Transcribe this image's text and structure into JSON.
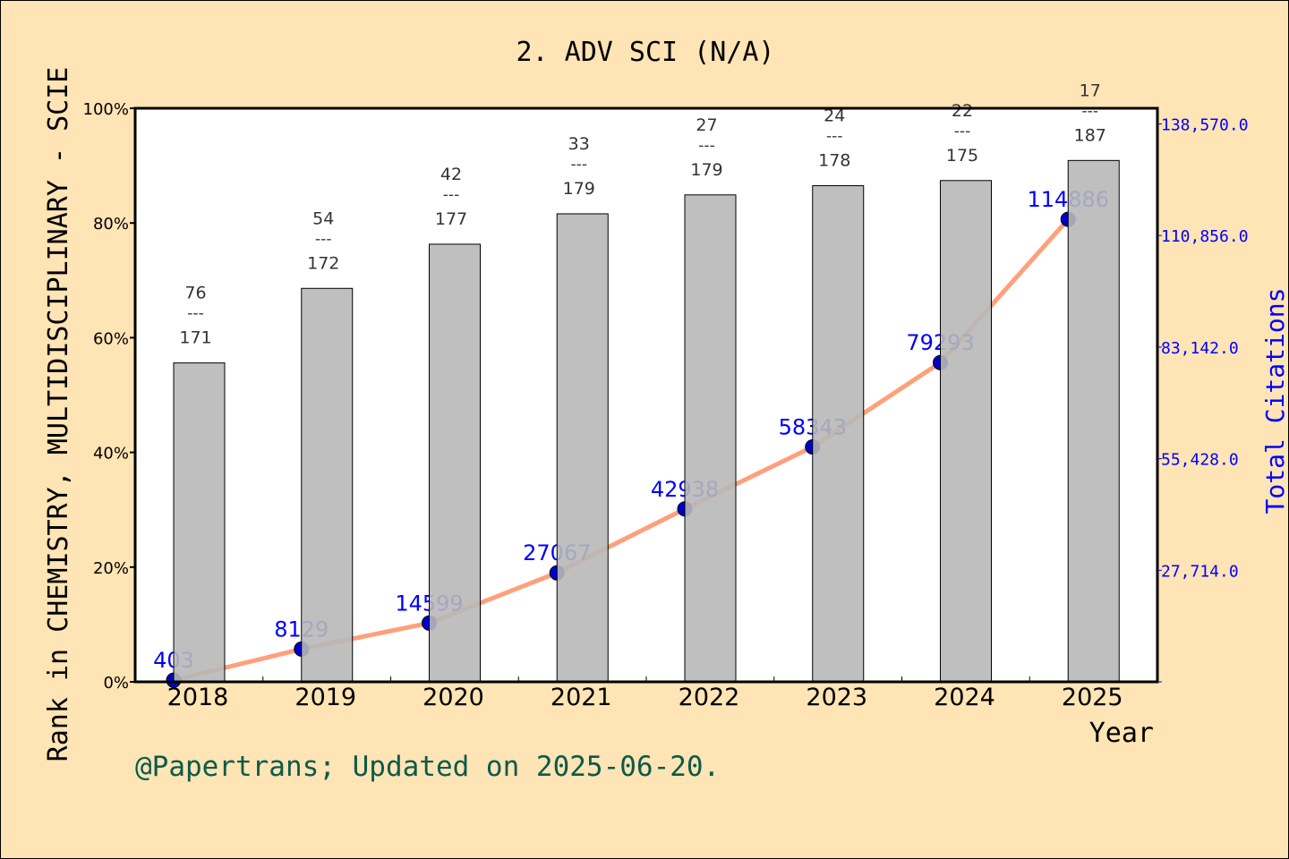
{
  "chart_data": {
    "type": "bar",
    "title": "2. ADV SCI (N/A)",
    "xlabel": "Year",
    "ylabel": "Rank in CHEMISTRY, MULTIDISCIPLINARY - SCIE",
    "y2label": "Total Citations",
    "categories": [
      "2018",
      "2019",
      "2020",
      "2021",
      "2022",
      "2023",
      "2024",
      "2025"
    ],
    "ranks": [
      76,
      54,
      42,
      33,
      27,
      24,
      22,
      17
    ],
    "totals": [
      171,
      172,
      177,
      179,
      179,
      178,
      175,
      187
    ],
    "rank_separator": "---",
    "bar_percent": [
      55.6,
      68.6,
      76.3,
      81.6,
      84.9,
      86.5,
      87.4,
      90.9
    ],
    "ylim": [
      0,
      100
    ],
    "yticks": [
      "0%",
      "20%",
      "40%",
      "60%",
      "80%",
      "100%"
    ],
    "y2ticks": [
      "27,714.0",
      "55,428.0",
      "83,142.0",
      "110,856.0",
      "138,570.0"
    ],
    "y2lim": [
      0,
      142460
    ],
    "series": [
      {
        "name": "Total Citations",
        "type": "line",
        "values": [
          403,
          8129,
          14599,
          27067,
          42938,
          58343,
          79293,
          114886
        ]
      }
    ],
    "colors": {
      "bar": "#B8B8B8",
      "line": "#FFA07A",
      "marker": "#0000CD",
      "y2": "#0000FF",
      "footer": "#0B5A4A",
      "background": "#FFE4B5"
    },
    "grid": false
  },
  "footer": "@Papertrans; Updated on 2025-06-20."
}
